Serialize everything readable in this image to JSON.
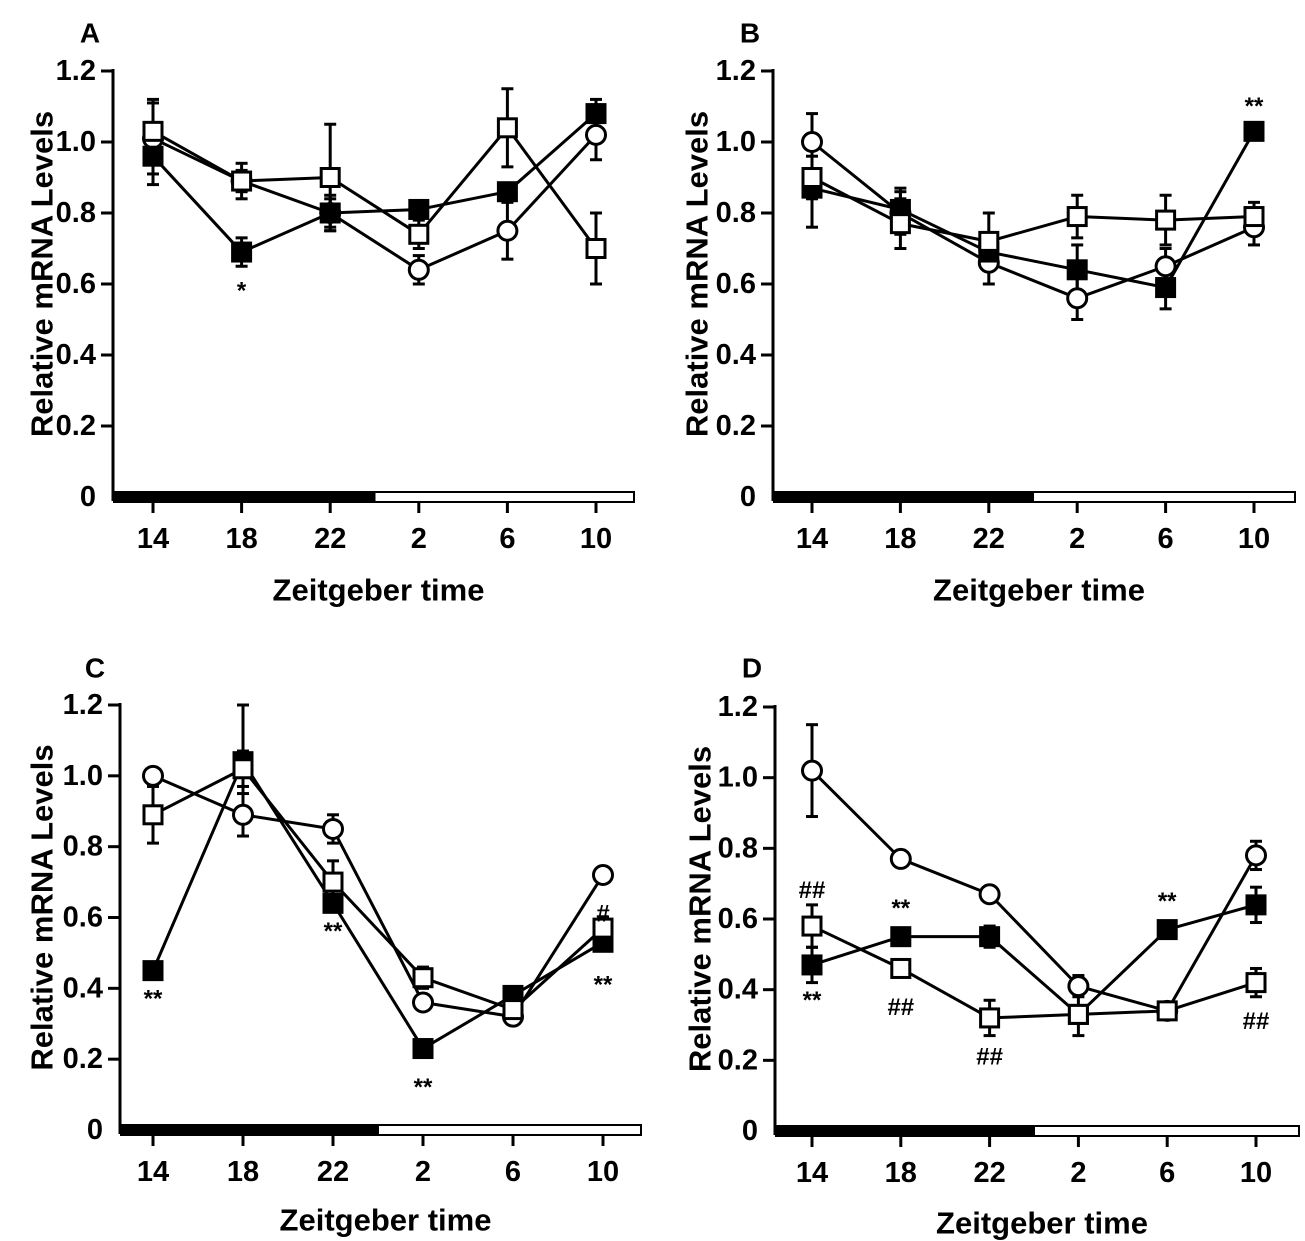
{
  "chart_data": [
    {
      "panel": "A",
      "type": "line",
      "categories": [
        "14",
        "18",
        "22",
        "2",
        "6",
        "10"
      ],
      "xlabel": "Zeitgeber time",
      "ylabel": "Relative mRNA Levels",
      "ylim": [
        0,
        1.2
      ],
      "yticks": [
        "0",
        "0.2",
        "0.4",
        "0.6",
        "0.8",
        "1.0",
        "1.2"
      ],
      "light_dark_bar": {
        "dark_from": "14",
        "dark_to": "22-2 midpoint"
      },
      "series": [
        {
          "marker": "open-circle",
          "values": [
            1.01,
            0.89,
            0.8,
            0.64,
            0.75,
            1.02
          ],
          "errors": [
            0.1,
            0.03,
            0.04,
            0.04,
            0.08,
            0.07
          ]
        },
        {
          "marker": "filled-square",
          "values": [
            0.96,
            0.69,
            0.8,
            0.81,
            0.86,
            1.08
          ],
          "errors": [
            0.08,
            0.04,
            0.05,
            0.02,
            0.02,
            0.04
          ]
        },
        {
          "marker": "open-square",
          "values": [
            1.03,
            0.89,
            0.9,
            0.74,
            1.04,
            0.7
          ],
          "errors": [
            0.09,
            0.05,
            0.15,
            0.04,
            0.11,
            0.1
          ]
        }
      ],
      "annotations": [
        {
          "text": "*",
          "x": "18",
          "y": 0.58
        }
      ]
    },
    {
      "panel": "B",
      "type": "line",
      "categories": [
        "14",
        "18",
        "22",
        "2",
        "6",
        "10"
      ],
      "xlabel": "Zeitgeber time",
      "ylabel": "Relative mRNA Levels",
      "ylim": [
        0,
        1.2
      ],
      "yticks": [
        "0",
        "0.2",
        "0.4",
        "0.6",
        "0.8",
        "1.0",
        "1.2"
      ],
      "series": [
        {
          "marker": "open-circle",
          "values": [
            1.0,
            0.8,
            0.66,
            0.56,
            0.65,
            0.76
          ],
          "errors": [
            0.08,
            0.06,
            0.06,
            0.06,
            0.05,
            0.05
          ]
        },
        {
          "marker": "filled-square",
          "values": [
            0.87,
            0.81,
            0.69,
            0.64,
            0.59,
            1.03
          ],
          "errors": [
            0.11,
            0.06,
            0.05,
            0.07,
            0.06,
            0.02
          ]
        },
        {
          "marker": "open-square",
          "values": [
            0.9,
            0.77,
            0.72,
            0.79,
            0.78,
            0.79
          ],
          "errors": [
            0.06,
            0.07,
            0.08,
            0.06,
            0.07,
            0.04
          ]
        }
      ],
      "annotations": [
        {
          "text": "**",
          "x": "10",
          "y": 1.1
        }
      ]
    },
    {
      "panel": "C",
      "type": "line",
      "categories": [
        "14",
        "18",
        "22",
        "2",
        "6",
        "10"
      ],
      "xlabel": "Zeitgeber time",
      "ylabel": "Relative mRNA Levels",
      "ylim": [
        0,
        1.2
      ],
      "yticks": [
        "0",
        "0.2",
        "0.4",
        "0.6",
        "0.8",
        "1.0",
        "1.2"
      ],
      "series": [
        {
          "marker": "open-circle",
          "values": [
            1.0,
            0.89,
            0.85,
            0.36,
            0.32,
            0.72
          ],
          "errors": [
            0.02,
            0.06,
            0.04,
            0.02,
            0.02,
            0.01
          ]
        },
        {
          "marker": "filled-square",
          "values": [
            0.45,
            1.04,
            0.64,
            0.23,
            0.38,
            0.53
          ],
          "errors": [
            0.01,
            0.16,
            0.02,
            0.01,
            0.02,
            0.02
          ]
        },
        {
          "marker": "open-square",
          "values": [
            0.89,
            1.02,
            0.7,
            0.43,
            0.34,
            0.57
          ],
          "errors": [
            0.08,
            0.05,
            0.06,
            0.03,
            0.02,
            0.03
          ]
        }
      ],
      "annotations": [
        {
          "text": "**",
          "x": "14",
          "y": 0.37
        },
        {
          "text": "**",
          "x": "22",
          "y": 0.56
        },
        {
          "text": "**",
          "x": "2",
          "y": 0.12
        },
        {
          "text": "#",
          "x": "10",
          "y": 0.61
        },
        {
          "text": "**",
          "x": "10",
          "y": 0.41
        }
      ]
    },
    {
      "panel": "D",
      "type": "line",
      "categories": [
        "14",
        "18",
        "22",
        "2",
        "6",
        "10"
      ],
      "xlabel": "Zeitgeber time",
      "ylabel": "Relative mRNA Levels",
      "ylim": [
        0,
        1.2
      ],
      "yticks": [
        "0",
        "0.2",
        "0.4",
        "0.6",
        "0.8",
        "1.0",
        "1.2"
      ],
      "series": [
        {
          "marker": "open-circle",
          "values": [
            1.02,
            0.77,
            0.67,
            0.41,
            0.34,
            0.78
          ],
          "errors": [
            0.13,
            0.01,
            0.02,
            0.03,
            0.01,
            0.04
          ]
        },
        {
          "marker": "filled-square",
          "values": [
            0.47,
            0.55,
            0.55,
            0.33,
            0.57,
            0.64
          ],
          "errors": [
            0.05,
            0.02,
            0.03,
            0.02,
            0.02,
            0.05
          ]
        },
        {
          "marker": "open-square",
          "values": [
            0.58,
            0.46,
            0.32,
            0.33,
            0.34,
            0.42
          ],
          "errors": [
            0.06,
            0.02,
            0.05,
            0.06,
            0.01,
            0.04
          ]
        }
      ],
      "annotations": [
        {
          "text": "##",
          "x": "14",
          "y": 0.68
        },
        {
          "text": "**",
          "x": "14",
          "y": 0.37
        },
        {
          "text": "**",
          "x": "18",
          "y": 0.63
        },
        {
          "text": "##",
          "x": "18",
          "y": 0.35
        },
        {
          "text": "##",
          "x": "22",
          "y": 0.21
        },
        {
          "text": "**",
          "x": "6",
          "y": 0.65
        },
        {
          "text": "##",
          "x": "10",
          "y": 0.31
        }
      ]
    }
  ]
}
